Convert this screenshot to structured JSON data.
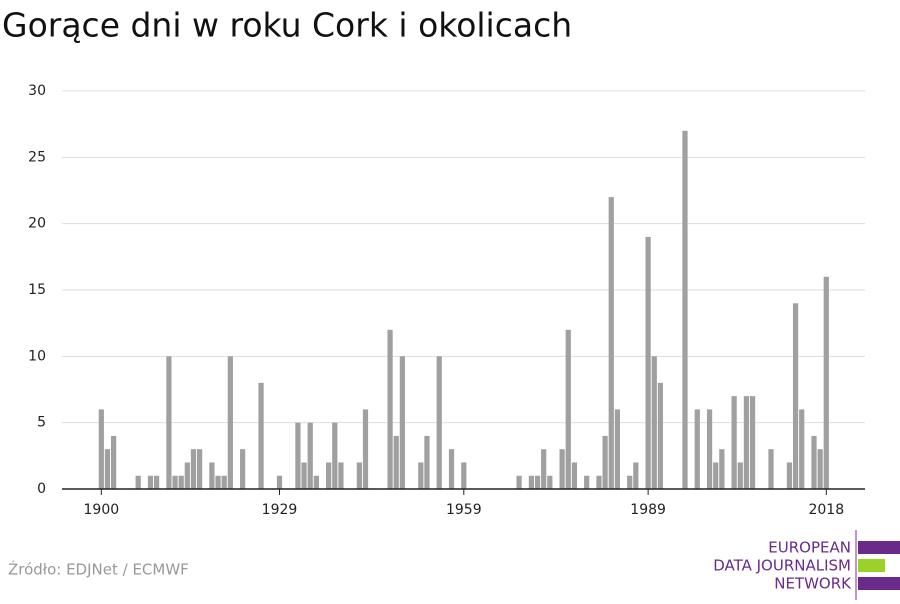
{
  "chart_data": {
    "type": "bar",
    "title": "Gorące dni w roku Cork i okolicach",
    "source": "Źródło: EDJNet / ECMWF",
    "logo": [
      "EUROPEAN",
      "DATA JOURNALISM",
      "NETWORK"
    ],
    "color": "#a0a0a0",
    "x": [
      1900,
      1901,
      1902,
      1906,
      1908,
      1909,
      1911,
      1912,
      1913,
      1914,
      1915,
      1916,
      1918,
      1919,
      1920,
      1921,
      1923,
      1926,
      1929,
      1932,
      1933,
      1934,
      1935,
      1937,
      1938,
      1939,
      1942,
      1943,
      1947,
      1948,
      1949,
      1952,
      1953,
      1955,
      1957,
      1959,
      1968,
      1970,
      1971,
      1972,
      1973,
      1975,
      1976,
      1977,
      1979,
      1981,
      1982,
      1983,
      1984,
      1986,
      1987,
      1989,
      1990,
      1991,
      1995,
      1997,
      1999,
      2000,
      2001,
      2003,
      2004,
      2005,
      2006,
      2009,
      2012,
      2013,
      2014,
      2016,
      2017,
      2018
    ],
    "values": [
      6,
      3,
      4,
      1,
      1,
      1,
      10,
      1,
      1,
      2,
      3,
      3,
      2,
      1,
      1,
      10,
      3,
      8,
      1,
      5,
      2,
      5,
      1,
      2,
      5,
      2,
      2,
      6,
      12,
      4,
      10,
      2,
      4,
      10,
      3,
      2,
      1,
      1,
      1,
      3,
      1,
      3,
      12,
      2,
      1,
      1,
      4,
      22,
      6,
      1,
      2,
      19,
      10,
      8,
      27,
      6,
      6,
      2,
      3,
      7,
      2,
      7,
      7,
      3,
      2,
      14,
      6,
      4,
      3,
      16
    ],
    "xlim": [
      1893.6,
      2024.3
    ],
    "xticks": [
      1900,
      1929,
      1959,
      1989,
      2018
    ],
    "ylim": [
      0,
      30
    ],
    "yticks": [
      0,
      5,
      10,
      15,
      20,
      25,
      30
    ],
    "grid": true
  }
}
